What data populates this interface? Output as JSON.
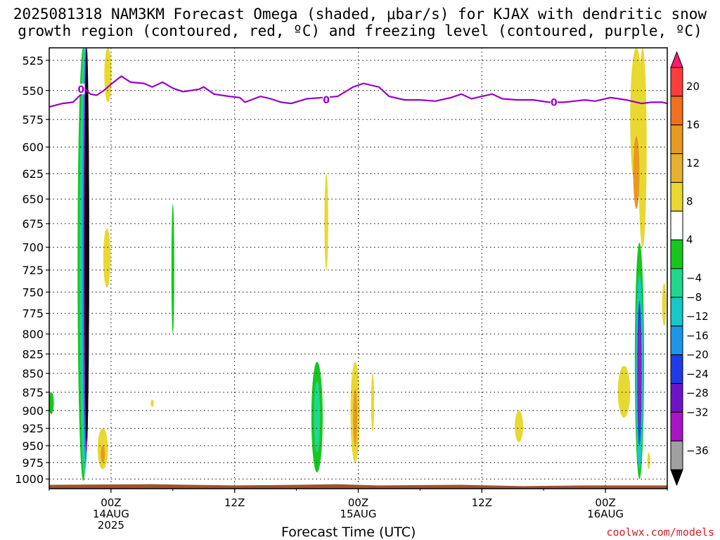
{
  "title_line1": "2025081318 NAM3KM Forecast Omega (shaded, μbar/s) for KJAX with dendritic snow",
  "title_line2": "growth region (contoured, red, ºC) and freezing level (contoured, purple, ºC)",
  "credit": "coolwx.com/models",
  "chart_data": {
    "type": "heatmap",
    "title": "2025081318 NAM3KM Forecast Omega (shaded, μbar/s) for KJAX with dendritic snow growth region (contoured, red, ºC) and freezing level (contoured, purple, ºC)",
    "xlabel": "Forecast Time (UTC)",
    "ylabel": "",
    "x_ticks": [
      {
        "hour": 6,
        "label": "00Z",
        "sub1": "14AUG",
        "sub2": "2025"
      },
      {
        "hour": 18,
        "label": "12Z",
        "sub1": "",
        "sub2": ""
      },
      {
        "hour": 30,
        "label": "00Z",
        "sub1": "15AUG",
        "sub2": ""
      },
      {
        "hour": 42,
        "label": "12Z",
        "sub1": "",
        "sub2": ""
      },
      {
        "hour": 54,
        "label": "00Z",
        "sub1": "16AUG",
        "sub2": ""
      }
    ],
    "xlim": [
      0,
      60
    ],
    "y_ticks": [
      525,
      550,
      575,
      600,
      625,
      650,
      675,
      700,
      725,
      750,
      775,
      800,
      825,
      850,
      875,
      900,
      925,
      950,
      975,
      1000
    ],
    "ylim": [
      1015,
      515
    ],
    "y_scale": "log",
    "colorbar": {
      "labels": [
        "20",
        "16",
        "12",
        "8",
        "4",
        "−4",
        "−8",
        "−12",
        "−16",
        "−20",
        "−24",
        "−28",
        "−32",
        "−36"
      ],
      "colors": [
        "#ff1a6e",
        "#ff3c3c",
        "#f07020",
        "#e89a20",
        "#e8b030",
        "#e8d830",
        "#ffffff",
        "#16c81e",
        "#1ed88c",
        "#16c8c8",
        "#1e96e8",
        "#1e3ce8",
        "#6e14c8",
        "#aa14c8",
        "#a0a0a0",
        "#000000"
      ]
    },
    "freezing_level": {
      "value_label": "0",
      "color": "#9900cc",
      "points": [
        [
          0,
          564
        ],
        [
          1.3,
          561
        ],
        [
          2.3,
          560
        ],
        [
          3,
          554
        ],
        [
          3.5,
          549
        ],
        [
          4,
          553
        ],
        [
          4.6,
          554
        ],
        [
          5.3,
          550
        ],
        [
          6.1,
          544
        ],
        [
          7,
          538
        ],
        [
          7.9,
          543
        ],
        [
          9.2,
          544
        ],
        [
          10,
          547
        ],
        [
          11,
          543
        ],
        [
          12,
          548
        ],
        [
          13,
          551
        ],
        [
          14.5,
          549
        ],
        [
          15,
          547
        ],
        [
          16,
          553
        ],
        [
          17.5,
          555
        ],
        [
          18.5,
          556
        ],
        [
          19,
          560
        ],
        [
          20.5,
          555
        ],
        [
          21.5,
          557
        ],
        [
          22.5,
          560
        ],
        [
          23.5,
          561
        ],
        [
          25,
          557
        ],
        [
          26.5,
          556
        ],
        [
          28,
          555
        ],
        [
          29.5,
          547
        ],
        [
          30.5,
          544
        ],
        [
          32,
          547
        ],
        [
          33,
          555
        ],
        [
          34.5,
          558
        ],
        [
          36,
          558
        ],
        [
          37.5,
          559
        ],
        [
          39,
          556
        ],
        [
          40,
          553
        ],
        [
          41,
          557
        ],
        [
          42,
          555
        ],
        [
          43,
          553
        ],
        [
          44,
          557
        ],
        [
          45.5,
          558
        ],
        [
          47,
          558
        ],
        [
          48.5,
          560
        ],
        [
          50,
          560
        ],
        [
          51,
          559
        ],
        [
          52,
          558
        ],
        [
          53,
          559
        ],
        [
          54.5,
          556
        ],
        [
          56,
          558
        ],
        [
          57.5,
          561
        ],
        [
          58.5,
          560
        ],
        [
          59.5,
          560
        ],
        [
          60,
          561
        ]
      ],
      "labels": [
        [
          3.1,
          549
        ],
        [
          26.9,
          558
        ],
        [
          49,
          560
        ]
      ]
    },
    "ground": {
      "color": "#a0522d",
      "pressure": 1010
    },
    "grid": true
  }
}
